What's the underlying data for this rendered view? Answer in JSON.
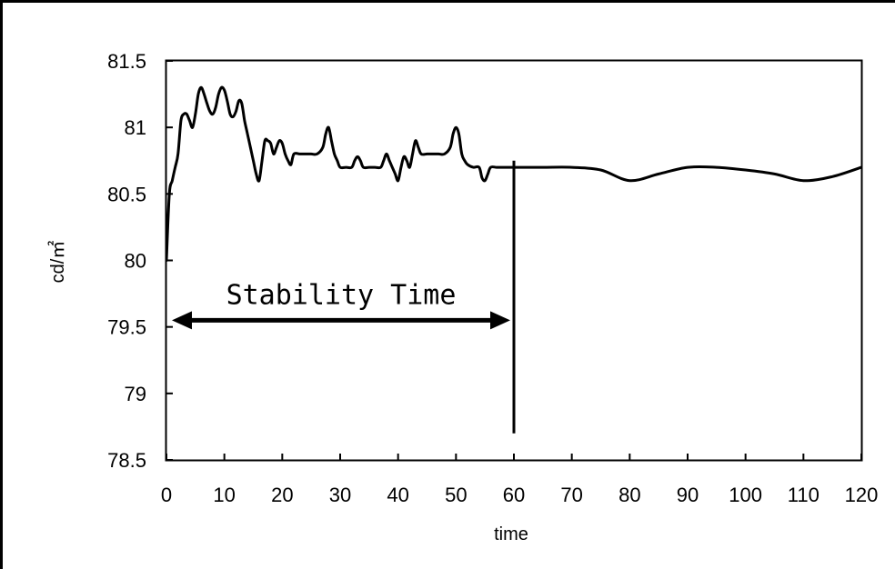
{
  "chart_data": {
    "type": "line",
    "xlabel": "time",
    "ylabel": "cd/㎡",
    "xlim": [
      0,
      120
    ],
    "ylim": [
      78.5,
      81.5
    ],
    "xticks": [
      "0",
      "10",
      "20",
      "30",
      "40",
      "50",
      "60",
      "70",
      "80",
      "90",
      "100",
      "110",
      "120"
    ],
    "yticks": [
      "78.5",
      "79",
      "79.5",
      "80",
      "80.5",
      "81",
      "81.5"
    ],
    "grid": false,
    "legend": "none",
    "line_color": "#000000",
    "series": [
      {
        "x": [
          0,
          0.5,
          1,
          1.5,
          2,
          2.5,
          3,
          3.5,
          4,
          4.5,
          5,
          5.5,
          6,
          6.5,
          7,
          7.5,
          8,
          8.5,
          9,
          9.5,
          10,
          10.5,
          11,
          11.5,
          12,
          12.5,
          13,
          13.5,
          14,
          14.5,
          15,
          15.5,
          16,
          16.5,
          17,
          17.5,
          18,
          18.5,
          19,
          19.5,
          20,
          20.5,
          21,
          21.5,
          22,
          23,
          24,
          25,
          26,
          27,
          27.5,
          28,
          28.5,
          29,
          29.5,
          30,
          31,
          32,
          32.5,
          33,
          33.5,
          34,
          35,
          36,
          37,
          37.5,
          38,
          38.5,
          39,
          39.5,
          40,
          40.5,
          41,
          41.5,
          42,
          42.5,
          43,
          43.5,
          44,
          45,
          46,
          47,
          48,
          49,
          49.5,
          50,
          50.5,
          51,
          51.5,
          52,
          53,
          54,
          54.5,
          55,
          55.5,
          56,
          57,
          58,
          60,
          65,
          70,
          75,
          80,
          85,
          90,
          95,
          100,
          105,
          110,
          115,
          120
        ],
        "y": [
          80.0,
          80.5,
          80.6,
          80.7,
          80.8,
          81.05,
          81.1,
          81.1,
          81.05,
          81.0,
          81.1,
          81.25,
          81.3,
          81.25,
          81.18,
          81.12,
          81.1,
          81.15,
          81.25,
          81.3,
          81.28,
          81.2,
          81.1,
          81.08,
          81.12,
          81.2,
          81.18,
          81.05,
          80.95,
          80.85,
          80.75,
          80.65,
          80.6,
          80.75,
          80.9,
          80.9,
          80.88,
          80.8,
          80.85,
          80.9,
          80.88,
          80.8,
          80.75,
          80.72,
          80.8,
          80.8,
          80.8,
          80.8,
          80.8,
          80.85,
          80.95,
          81.0,
          80.9,
          80.8,
          80.75,
          80.7,
          80.7,
          80.7,
          80.75,
          80.78,
          80.75,
          80.7,
          80.7,
          80.7,
          80.7,
          80.75,
          80.8,
          80.75,
          80.7,
          80.65,
          80.6,
          80.7,
          80.78,
          80.75,
          80.7,
          80.8,
          80.9,
          80.85,
          80.8,
          80.8,
          80.8,
          80.8,
          80.8,
          80.85,
          80.95,
          81.0,
          80.95,
          80.8,
          80.75,
          80.72,
          80.7,
          80.7,
          80.62,
          80.6,
          80.65,
          80.7,
          80.7,
          80.7,
          80.7,
          80.7,
          80.7,
          80.68,
          80.6,
          80.65,
          80.7,
          80.7,
          80.68,
          80.65,
          80.6,
          80.63,
          80.7
        ]
      }
    ],
    "annotations": [
      {
        "text": "Stability Time",
        "arrow_from_x": 0,
        "arrow_to_x": 60,
        "arrow_y": 79.55,
        "marker_line_x": 60,
        "marker_line_y": [
          78.7,
          80.75
        ]
      }
    ]
  }
}
